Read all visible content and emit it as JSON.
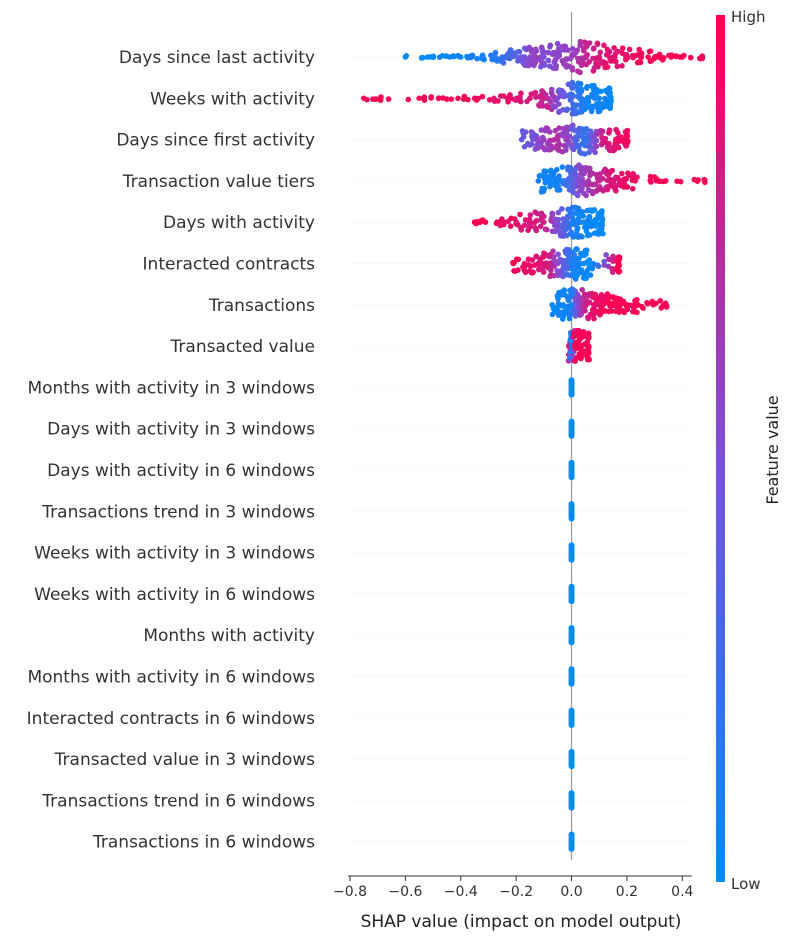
{
  "chart_data": {
    "type": "scatter",
    "subtype": "shap-beeswarm",
    "xlabel": "SHAP value (impact on model output)",
    "xlim": [
      -0.8,
      0.5
    ],
    "xticks": [
      "−0.8",
      "−0.6",
      "−0.4",
      "−0.2",
      "0.0",
      "0.2",
      "0.4"
    ],
    "xtick_values": [
      -0.8,
      -0.6,
      -0.4,
      -0.2,
      0.0,
      0.2,
      0.4
    ],
    "grid": false,
    "colorbar": {
      "label": "Feature value",
      "high_label": "High",
      "low_label": "Low",
      "low_color": "#008bfb",
      "high_color": "#ff0052"
    },
    "features": [
      {
        "name": "Days since last activity",
        "points": [
          {
            "x": -0.6,
            "f": 0.0
          },
          {
            "x": -0.52,
            "f": 0.0
          },
          {
            "x": -0.5,
            "f": 0.0
          },
          {
            "x": -0.44,
            "f": 0.05
          },
          {
            "x": -0.4,
            "f": 0.05
          },
          {
            "x": -0.36,
            "f": 0.1
          },
          {
            "x": -0.32,
            "f": 0.1
          },
          {
            "x": -0.28,
            "f": 0.15
          },
          {
            "x": -0.25,
            "f": 0.2
          },
          {
            "x": -0.22,
            "f": 0.3
          },
          {
            "x": -0.18,
            "f": 0.45
          },
          {
            "x": -0.15,
            "f": 0.55
          },
          {
            "x": -0.13,
            "f": 0.6
          },
          {
            "x": -0.1,
            "f": 0.5
          },
          {
            "x": -0.05,
            "f": 0.55
          },
          {
            "x": 0.0,
            "f": 0.6
          },
          {
            "x": 0.05,
            "f": 0.75
          },
          {
            "x": 0.1,
            "f": 0.85
          },
          {
            "x": 0.15,
            "f": 0.9
          },
          {
            "x": 0.2,
            "f": 0.95
          },
          {
            "x": 0.25,
            "f": 0.95
          },
          {
            "x": 0.3,
            "f": 1.0
          },
          {
            "x": 0.36,
            "f": 1.0
          },
          {
            "x": 0.4,
            "f": 1.0
          },
          {
            "x": 0.47,
            "f": 1.0
          }
        ]
      },
      {
        "name": "Weeks with activity",
        "points": [
          {
            "x": -0.75,
            "f": 1.0
          },
          {
            "x": -0.69,
            "f": 1.0
          },
          {
            "x": -0.55,
            "f": 1.0
          },
          {
            "x": -0.48,
            "f": 1.0
          },
          {
            "x": -0.41,
            "f": 0.95
          },
          {
            "x": -0.35,
            "f": 0.95
          },
          {
            "x": -0.28,
            "f": 0.9
          },
          {
            "x": -0.22,
            "f": 0.9
          },
          {
            "x": -0.15,
            "f": 0.85
          },
          {
            "x": -0.1,
            "f": 0.8
          },
          {
            "x": -0.05,
            "f": 0.5
          },
          {
            "x": 0.0,
            "f": 0.3
          },
          {
            "x": 0.03,
            "f": 0.15
          },
          {
            "x": 0.06,
            "f": 0.05
          },
          {
            "x": 0.1,
            "f": 0.05
          },
          {
            "x": 0.14,
            "f": 0.0
          }
        ]
      },
      {
        "name": "Days since first activity",
        "points": [
          {
            "x": -0.18,
            "f": 0.4
          },
          {
            "x": -0.14,
            "f": 0.45
          },
          {
            "x": -0.1,
            "f": 0.6
          },
          {
            "x": -0.06,
            "f": 0.7
          },
          {
            "x": -0.02,
            "f": 0.6
          },
          {
            "x": 0.02,
            "f": 0.3
          },
          {
            "x": 0.05,
            "f": 0.2
          },
          {
            "x": 0.08,
            "f": 0.5
          },
          {
            "x": 0.12,
            "f": 0.85
          },
          {
            "x": 0.16,
            "f": 0.9
          },
          {
            "x": 0.2,
            "f": 0.95
          }
        ]
      },
      {
        "name": "Transaction value tiers",
        "points": [
          {
            "x": -0.12,
            "f": 0.1
          },
          {
            "x": -0.08,
            "f": 0.05
          },
          {
            "x": -0.04,
            "f": 0.1
          },
          {
            "x": 0.0,
            "f": 0.3
          },
          {
            "x": 0.03,
            "f": 0.55
          },
          {
            "x": 0.06,
            "f": 0.65
          },
          {
            "x": 0.1,
            "f": 0.75
          },
          {
            "x": 0.14,
            "f": 0.85
          },
          {
            "x": 0.18,
            "f": 0.9
          },
          {
            "x": 0.23,
            "f": 0.95
          },
          {
            "x": 0.34,
            "f": 1.0
          },
          {
            "x": 0.48,
            "f": 1.0
          }
        ]
      },
      {
        "name": "Days with activity",
        "points": [
          {
            "x": -0.35,
            "f": 1.0
          },
          {
            "x": -0.33,
            "f": 1.0
          },
          {
            "x": -0.26,
            "f": 0.95
          },
          {
            "x": -0.2,
            "f": 0.9
          },
          {
            "x": -0.15,
            "f": 0.85
          },
          {
            "x": -0.1,
            "f": 0.8
          },
          {
            "x": -0.05,
            "f": 0.5
          },
          {
            "x": -0.02,
            "f": 0.3
          },
          {
            "x": 0.01,
            "f": 0.1
          },
          {
            "x": 0.04,
            "f": 0.05
          },
          {
            "x": 0.08,
            "f": 0.0
          },
          {
            "x": 0.11,
            "f": 0.0
          }
        ]
      },
      {
        "name": "Interacted contracts",
        "points": [
          {
            "x": -0.21,
            "f": 1.0
          },
          {
            "x": -0.17,
            "f": 0.95
          },
          {
            "x": -0.12,
            "f": 0.9
          },
          {
            "x": -0.08,
            "f": 0.8
          },
          {
            "x": -0.05,
            "f": 0.55
          },
          {
            "x": -0.02,
            "f": 0.3
          },
          {
            "x": 0.0,
            "f": 0.1
          },
          {
            "x": 0.03,
            "f": 0.05
          },
          {
            "x": 0.07,
            "f": 0.0
          },
          {
            "x": 0.17,
            "f": 1.0
          }
        ]
      },
      {
        "name": "Transactions",
        "points": [
          {
            "x": -0.07,
            "f": 0.0
          },
          {
            "x": -0.03,
            "f": 0.05
          },
          {
            "x": 0.0,
            "f": 0.1
          },
          {
            "x": 0.02,
            "f": 0.5
          },
          {
            "x": 0.05,
            "f": 0.8
          },
          {
            "x": 0.08,
            "f": 0.9
          },
          {
            "x": 0.11,
            "f": 0.95
          },
          {
            "x": 0.14,
            "f": 1.0
          },
          {
            "x": 0.17,
            "f": 1.0
          },
          {
            "x": 0.2,
            "f": 1.0
          },
          {
            "x": 0.24,
            "f": 1.0
          },
          {
            "x": 0.34,
            "f": 1.0
          }
        ]
      },
      {
        "name": "Transacted value",
        "points": [
          {
            "x": -0.01,
            "f": 0.9
          },
          {
            "x": 0.0,
            "f": 0.0
          },
          {
            "x": 0.01,
            "f": 0.95
          },
          {
            "x": 0.03,
            "f": 1.0
          },
          {
            "x": 0.06,
            "f": 1.0
          }
        ]
      },
      {
        "name": "Months with activity in 3 windows",
        "points": [
          {
            "x": 0.0,
            "f": 0.0
          }
        ]
      },
      {
        "name": "Days with activity in 3 windows",
        "points": [
          {
            "x": 0.0,
            "f": 0.0
          }
        ]
      },
      {
        "name": "Days with activity in 6 windows",
        "points": [
          {
            "x": 0.0,
            "f": 0.0
          }
        ]
      },
      {
        "name": "Transactions trend in 3 windows",
        "points": [
          {
            "x": 0.0,
            "f": 0.0
          }
        ]
      },
      {
        "name": "Weeks with activity in 3 windows",
        "points": [
          {
            "x": 0.0,
            "f": 0.0
          }
        ]
      },
      {
        "name": "Weeks with activity in 6 windows",
        "points": [
          {
            "x": 0.0,
            "f": 0.0
          }
        ]
      },
      {
        "name": "Months with activity",
        "points": [
          {
            "x": 0.0,
            "f": 0.0
          }
        ]
      },
      {
        "name": "Months with activity in 6 windows",
        "points": [
          {
            "x": 0.0,
            "f": 0.0
          }
        ]
      },
      {
        "name": "Interacted contracts in 6 windows",
        "points": [
          {
            "x": 0.0,
            "f": 0.0
          }
        ]
      },
      {
        "name": "Transacted value in 3 windows",
        "points": [
          {
            "x": 0.0,
            "f": 0.0
          }
        ]
      },
      {
        "name": "Transactions trend in 6 windows",
        "points": [
          {
            "x": 0.0,
            "f": 0.0
          }
        ]
      },
      {
        "name": "Transactions in 6 windows",
        "points": [
          {
            "x": 0.0,
            "f": 0.0
          }
        ]
      }
    ]
  }
}
